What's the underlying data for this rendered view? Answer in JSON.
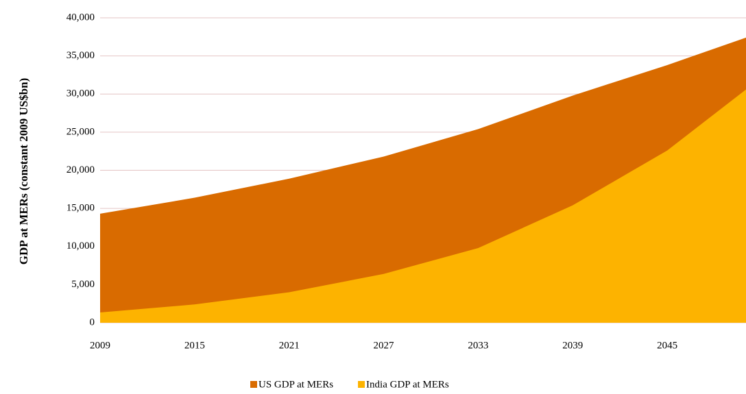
{
  "chart_data": {
    "type": "area",
    "y_label": "GDP at MERs (constant 2009 US$bn)",
    "x": [
      2009,
      2015,
      2021,
      2027,
      2033,
      2039,
      2045,
      2050
    ],
    "series": [
      {
        "name": "US GDP at MERs",
        "color": "#d96b00",
        "values": [
          14300,
          16400,
          18900,
          21800,
          25400,
          29800,
          33800,
          37400
        ]
      },
      {
        "name": "India GDP at MERs",
        "color": "#fdb300",
        "values": [
          1350,
          2400,
          4000,
          6400,
          9800,
          15400,
          22600,
          30600
        ]
      }
    ],
    "xlim": [
      2009,
      2050
    ],
    "xticks": [
      2009,
      2015,
      2021,
      2027,
      2033,
      2039,
      2045
    ],
    "ylim": [
      0,
      40000
    ],
    "yticks": [
      0,
      {
        "value": 5000,
        "label": "5,000"
      },
      {
        "value": 10000,
        "label": "10,000"
      },
      {
        "value": 15000,
        "label": "15,000"
      },
      {
        "value": 20000,
        "label": "20,000"
      },
      {
        "value": 25000,
        "label": "25,000"
      },
      {
        "value": 30000,
        "label": "30,000"
      },
      {
        "value": 35000,
        "label": "35,000"
      },
      {
        "value": 40000,
        "label": "40,000"
      }
    ],
    "grid": true,
    "legend": "bottom"
  }
}
